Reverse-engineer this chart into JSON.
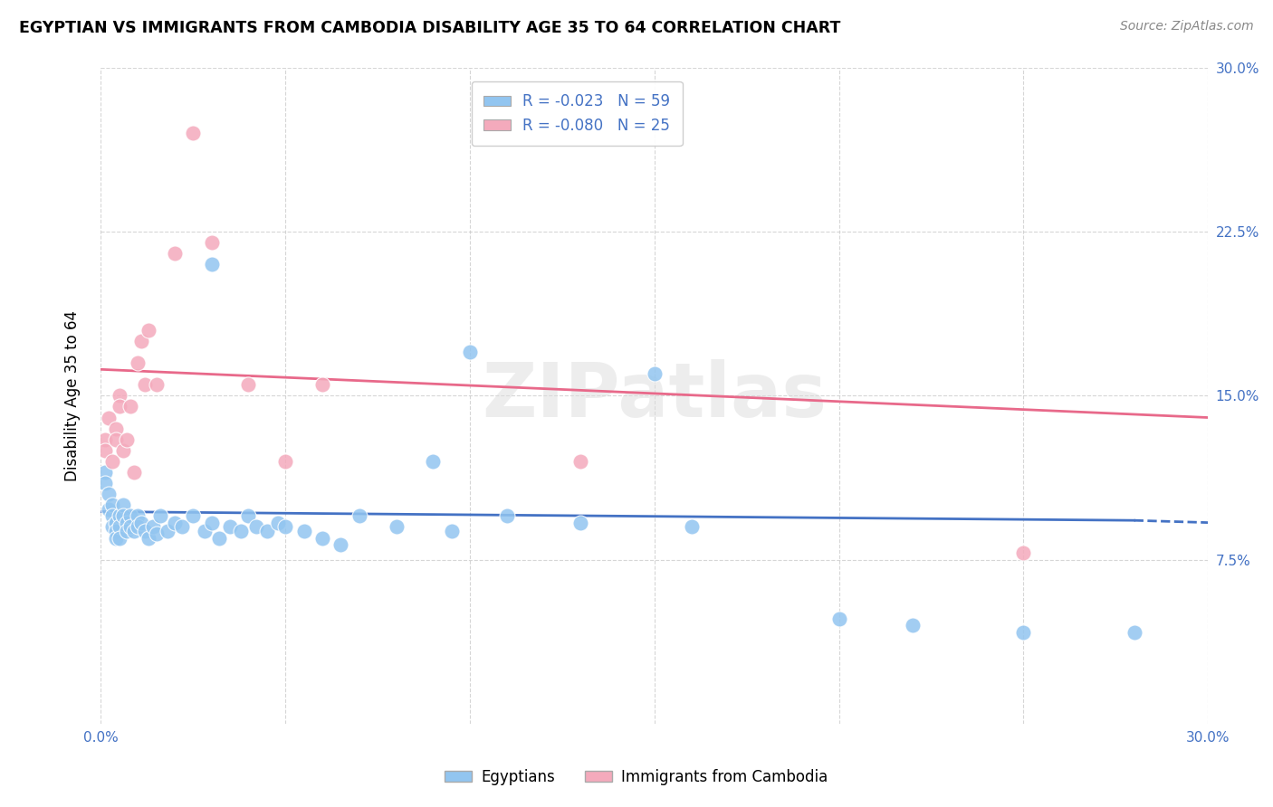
{
  "title": "EGYPTIAN VS IMMIGRANTS FROM CAMBODIA DISABILITY AGE 35 TO 64 CORRELATION CHART",
  "source": "Source: ZipAtlas.com",
  "ylabel": "Disability Age 35 to 64",
  "xlim": [
    0.0,
    0.3
  ],
  "ylim": [
    0.0,
    0.3
  ],
  "yticks": [
    0.075,
    0.15,
    0.225,
    0.3
  ],
  "xticks": [
    0.0,
    0.05,
    0.1,
    0.15,
    0.2,
    0.25,
    0.3
  ],
  "xticklabels_show": [
    "0.0%",
    "30.0%"
  ],
  "yticklabels": [
    "7.5%",
    "15.0%",
    "22.5%",
    "30.0%"
  ],
  "legend_labels": [
    "Egyptians",
    "Immigrants from Cambodia"
  ],
  "r_blue": -0.023,
  "n_blue": 59,
  "r_pink": -0.08,
  "n_pink": 25,
  "color_blue": "#92C5F0",
  "color_pink": "#F4AABC",
  "line_color_blue": "#4472C4",
  "line_color_pink": "#E8698A",
  "background_color": "#FFFFFF",
  "grid_color": "#CCCCCC",
  "watermark": "ZIPatlas",
  "blue_points_x": [
    0.001,
    0.001,
    0.002,
    0.002,
    0.003,
    0.003,
    0.003,
    0.004,
    0.004,
    0.004,
    0.005,
    0.005,
    0.005,
    0.006,
    0.006,
    0.007,
    0.007,
    0.008,
    0.008,
    0.009,
    0.01,
    0.01,
    0.011,
    0.012,
    0.013,
    0.014,
    0.015,
    0.016,
    0.018,
    0.02,
    0.022,
    0.025,
    0.028,
    0.03,
    0.032,
    0.035,
    0.038,
    0.04,
    0.042,
    0.045,
    0.048,
    0.05,
    0.055,
    0.06,
    0.065,
    0.07,
    0.08,
    0.09,
    0.095,
    0.1,
    0.11,
    0.13,
    0.15,
    0.16,
    0.2,
    0.22,
    0.25,
    0.28,
    0.03
  ],
  "blue_points_y": [
    0.115,
    0.11,
    0.105,
    0.098,
    0.1,
    0.095,
    0.09,
    0.092,
    0.088,
    0.085,
    0.095,
    0.09,
    0.085,
    0.1,
    0.095,
    0.092,
    0.088,
    0.095,
    0.09,
    0.088,
    0.095,
    0.09,
    0.092,
    0.088,
    0.085,
    0.09,
    0.087,
    0.095,
    0.088,
    0.092,
    0.09,
    0.095,
    0.088,
    0.092,
    0.085,
    0.09,
    0.088,
    0.095,
    0.09,
    0.088,
    0.092,
    0.09,
    0.088,
    0.085,
    0.082,
    0.095,
    0.09,
    0.12,
    0.088,
    0.17,
    0.095,
    0.092,
    0.16,
    0.09,
    0.048,
    0.045,
    0.042,
    0.042,
    0.21
  ],
  "pink_points_x": [
    0.001,
    0.001,
    0.002,
    0.003,
    0.004,
    0.004,
    0.005,
    0.005,
    0.006,
    0.007,
    0.008,
    0.009,
    0.01,
    0.011,
    0.012,
    0.013,
    0.015,
    0.02,
    0.025,
    0.03,
    0.04,
    0.05,
    0.06,
    0.13,
    0.25
  ],
  "pink_points_y": [
    0.13,
    0.125,
    0.14,
    0.12,
    0.135,
    0.13,
    0.15,
    0.145,
    0.125,
    0.13,
    0.145,
    0.115,
    0.165,
    0.175,
    0.155,
    0.18,
    0.155,
    0.215,
    0.27,
    0.22,
    0.155,
    0.12,
    0.155,
    0.12,
    0.078
  ],
  "blue_trend_y0": 0.097,
  "blue_trend_y1": 0.093,
  "pink_trend_y0": 0.162,
  "pink_trend_y1": 0.14
}
